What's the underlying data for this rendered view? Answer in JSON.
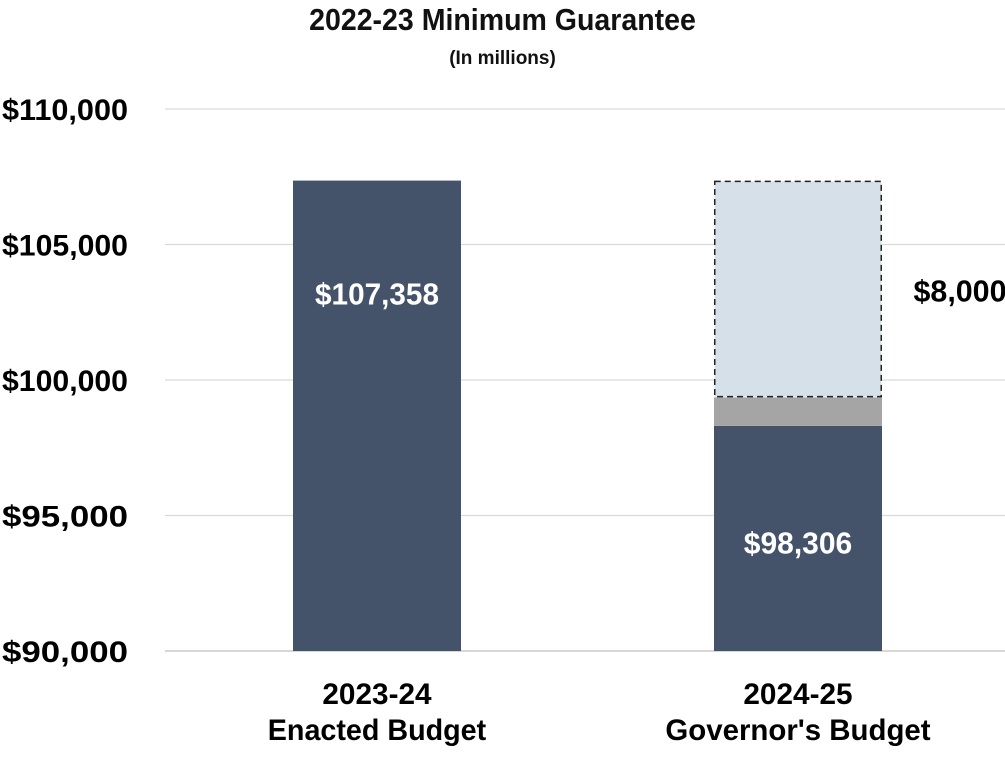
{
  "chart_data": {
    "type": "bar",
    "title": "2022-23 Minimum Guarantee",
    "subtitle": "(In millions)",
    "xlabel": "",
    "ylabel": "",
    "ylim": [
      90000,
      110000
    ],
    "yticks": [
      90000,
      95000,
      100000,
      105000,
      110000
    ],
    "ytick_labels": [
      "$90,000",
      "$95,000",
      "$100,000",
      "$105,000",
      "$110,000"
    ],
    "grid": true,
    "categories": [
      [
        "2023-24",
        "Enacted Budget"
      ],
      [
        "2024-25",
        "Governor's Budget"
      ]
    ],
    "bars": [
      {
        "segments": [
          {
            "from": 90000,
            "to": 107358,
            "color": "#44526a",
            "label": "$107,358",
            "label_value": 103200,
            "label_color": "#ffffff"
          }
        ]
      },
      {
        "segments": [
          {
            "from": 90000,
            "to": 98306,
            "color": "#44526a",
            "label": "$98,306",
            "label_value": 94000,
            "label_color": "#ffffff"
          },
          {
            "from": 98306,
            "to": 99358,
            "color": "#a5a5a5"
          },
          {
            "from": 99358,
            "to": 107358,
            "color": "#d5e0e8",
            "dashed": true,
            "label": "$8,000",
            "label_value": 103300,
            "label_color": "#000000",
            "label_outside": true
          }
        ]
      }
    ]
  }
}
